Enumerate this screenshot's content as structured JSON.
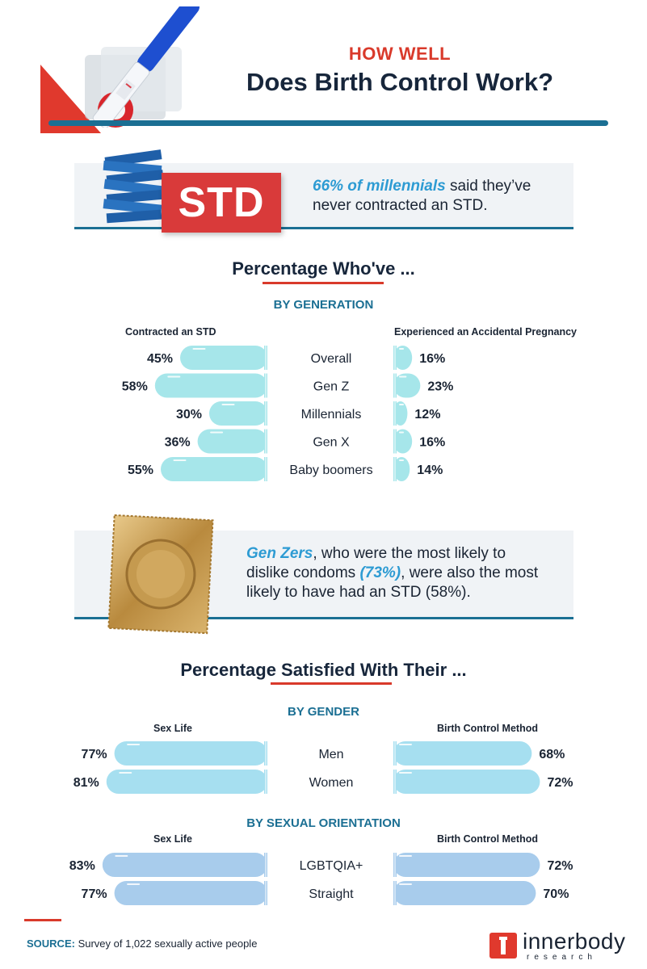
{
  "header": {
    "kicker": "HOW WELL",
    "title": "Does Birth Control Work?"
  },
  "callout1": {
    "badge": "STD",
    "highlight": "66% of millennials",
    "text_line1": " said they’ve",
    "text_line2": "never contracted an STD."
  },
  "section1": {
    "title": "Percentage Who've ...",
    "subhead": "BY GENERATION",
    "left_col": "Contracted an STD",
    "right_col": "Experienced an Accidental Pregnancy"
  },
  "callout2": {
    "highlight1": "Gen Zers",
    "text_line1": ", who were the most likely to",
    "text_line2a": "dislike condoms ",
    "highlight2": "(73%)",
    "text_line2b": ", were also the most",
    "text_line3": "likely to have had an STD (58%)."
  },
  "section2": {
    "title": "Percentage Satisfied With Their ...",
    "subhead_gender": "BY GENDER",
    "subhead_orientation": "BY SEXUAL ORIENTATION",
    "left_col": "Sex Life",
    "right_col": "Birth Control Method"
  },
  "footer": {
    "source_label": "SOURCE:",
    "source_text": " Survey of 1,022 sexually active people",
    "logo_name": "innerbody",
    "logo_sub": "research"
  },
  "chart_data": [
    {
      "type": "bar",
      "title": "Percentage Who've ... by Generation",
      "categories": [
        "Overall",
        "Gen Z",
        "Millennials",
        "Gen X",
        "Baby boomers"
      ],
      "series": [
        {
          "name": "Contracted an STD",
          "values": [
            45,
            58,
            30,
            36,
            55
          ],
          "labels": [
            "45%",
            "58%",
            "30%",
            "36%",
            "55%"
          ]
        },
        {
          "name": "Experienced an Accidental Pregnancy",
          "values": [
            16,
            23,
            12,
            16,
            14
          ],
          "labels": [
            "16%",
            "23%",
            "12%",
            "16%",
            "14%"
          ]
        }
      ],
      "bar_color": "#a6e6ea",
      "unit": "%"
    },
    {
      "type": "bar",
      "title": "Percentage Satisfied by Gender",
      "categories": [
        "Men",
        "Women"
      ],
      "series": [
        {
          "name": "Sex Life",
          "values": [
            77,
            81
          ],
          "labels": [
            "77%",
            "81%"
          ]
        },
        {
          "name": "Birth Control Method",
          "values": [
            68,
            72
          ],
          "labels": [
            "68%",
            "72%"
          ]
        }
      ],
      "bar_color": "#a6dff0",
      "unit": "%"
    },
    {
      "type": "bar",
      "title": "Percentage Satisfied by Sexual Orientation",
      "categories": [
        "LGBTQIA+",
        "Straight"
      ],
      "series": [
        {
          "name": "Sex Life",
          "values": [
            83,
            77
          ],
          "labels": [
            "83%",
            "77%"
          ]
        },
        {
          "name": "Birth Control Method",
          "values": [
            72,
            70
          ],
          "labels": [
            "72%",
            "70%"
          ]
        }
      ],
      "bar_color": "#a8ccec",
      "unit": "%"
    }
  ]
}
